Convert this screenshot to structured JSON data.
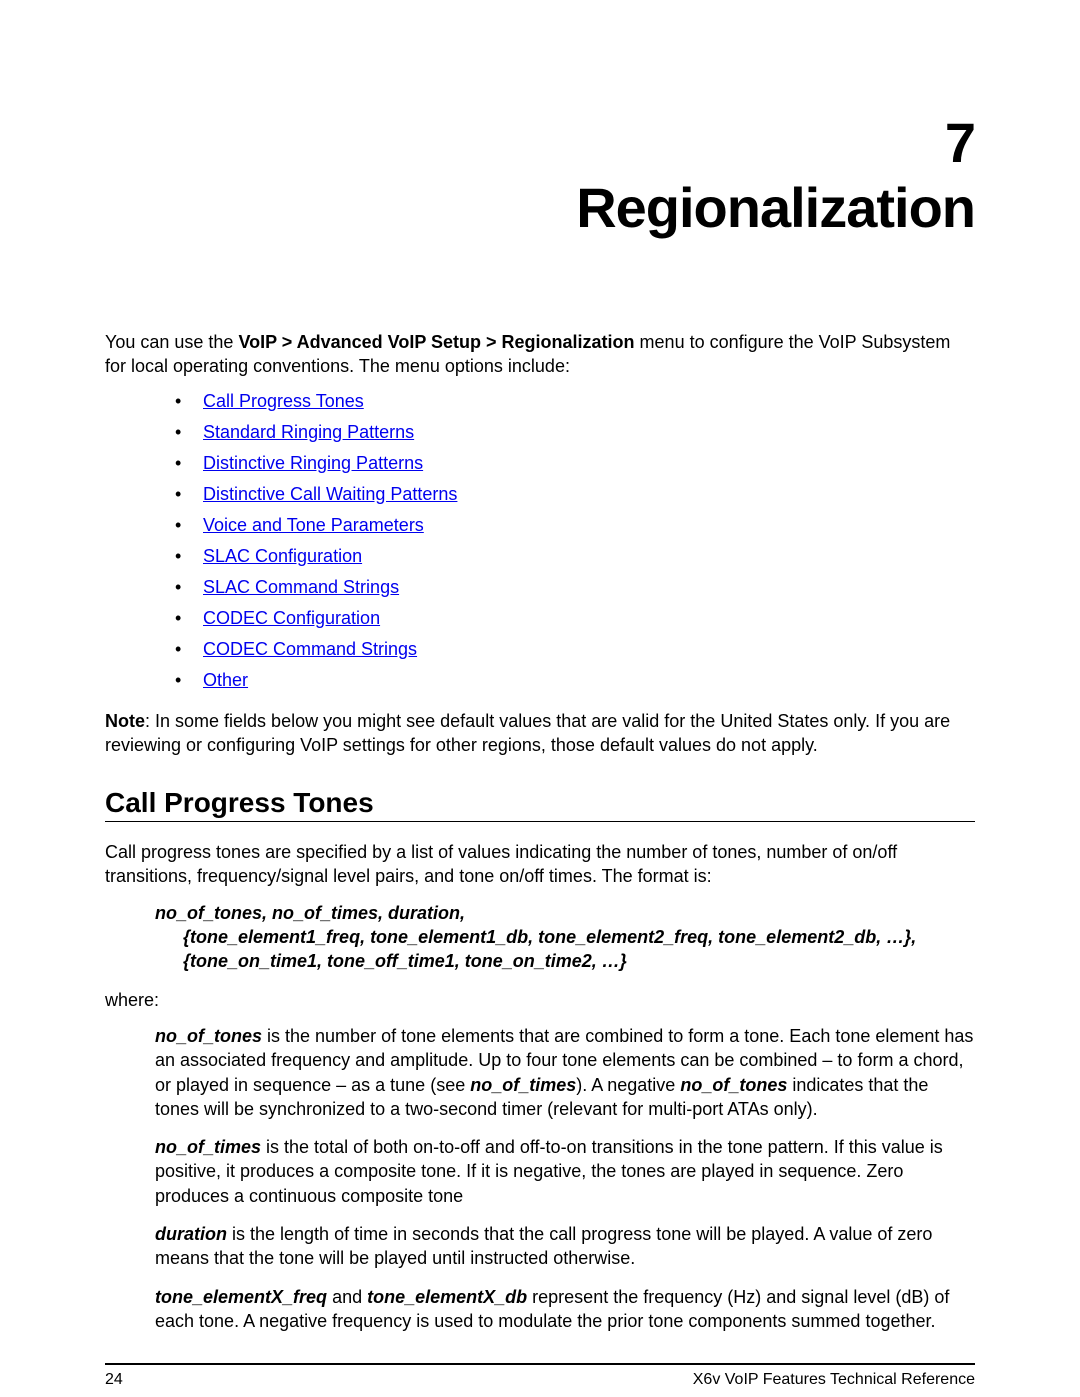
{
  "chapter": {
    "number": "7",
    "title": "Regionalization",
    "number_fontsize": 56,
    "title_fontsize": 56
  },
  "intro": {
    "pre": "You can use the ",
    "menu_path": "VoIP > Advanced VoIP Setup > Regionalization",
    "post": " menu to configure the VoIP Subsystem for local operating conventions. The menu options include:",
    "fontsize": 18
  },
  "links": {
    "items": [
      "Call Progress Tones",
      "Standard Ringing Patterns",
      "Distinctive Ringing Patterns",
      "Distinctive Call Waiting Patterns",
      "Voice and Tone Parameters",
      "SLAC Configuration",
      "SLAC Command Strings",
      "CODEC Configuration",
      "CODEC Command Strings",
      "Other"
    ],
    "color": "#0000ee",
    "fontsize": 18
  },
  "note": {
    "label": "Note",
    "text": ": In some fields below you might see default values that are valid for the United States only. If you are reviewing or configuring VoIP settings for other regions, those default values do not apply.",
    "fontsize": 18
  },
  "section": {
    "title": "Call Progress Tones",
    "fontsize": 28
  },
  "section_intro": {
    "text": "Call progress tones are specified by a list of values indicating the number of tones, number of on/off transitions, frequency/signal level pairs, and tone on/off times. The format is:",
    "fontsize": 18
  },
  "format": {
    "line1": "no_of_tones, no_of_times, duration,",
    "line2": "{tone_element1_freq, tone_element1_db, tone_element2_freq, tone_element2_db, …},",
    "line3": "{tone_on_time1, tone_off_time1, tone_on_time2, …}",
    "fontsize": 18
  },
  "where_label": "where:",
  "defs": {
    "d1": {
      "term": "no_of_tones",
      "body_a": " is the number of tone elements that are combined to form a tone. Each tone element has an associated frequency and amplitude. Up to four tone elements can be combined – to form a chord, or played in sequence – as a tune (see ",
      "term_b": "no_of_times",
      "body_b": "). A negative ",
      "term_c": "no_of_tones",
      "body_c": " indicates that the tones will be synchronized to a two-second timer (relevant for multi-port ATAs only)."
    },
    "d2": {
      "term": "no_of_times",
      "body": " is the total of both on-to-off and off-to-on transitions in the tone pattern. If this value is positive, it produces a composite tone. If it is negative, the tones are played in sequence. Zero produces a continuous composite tone"
    },
    "d3": {
      "term": "duration",
      "body": " is the length of time in seconds that the call progress tone will be played. A value of zero means that the tone will be played until instructed otherwise."
    },
    "d4": {
      "term_a": "tone_elementX_freq",
      "mid": " and ",
      "term_b": "tone_elementX_db",
      "body": " represent the frequency (Hz) and signal level (dB) of each tone. A negative frequency is used to modulate the prior tone components summed together."
    },
    "fontsize": 18
  },
  "footer": {
    "page": "24",
    "title": "X6v VoIP Features Technical Reference",
    "fontsize": 16
  }
}
